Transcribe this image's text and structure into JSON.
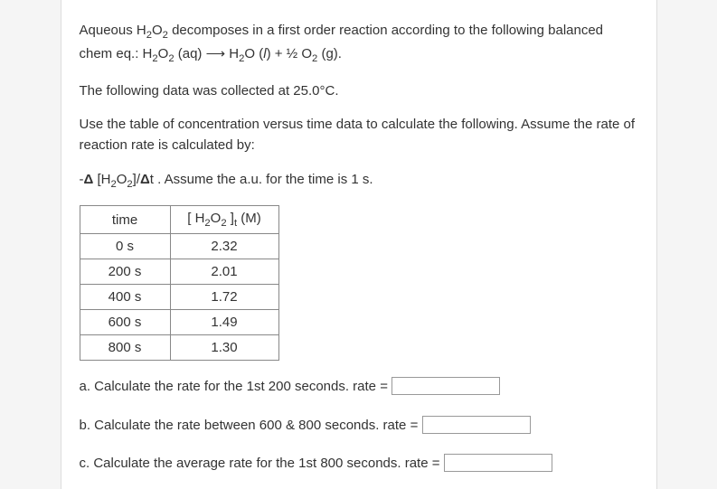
{
  "intro": {
    "p1_a": "Aqueous H",
    "p1_b": "O",
    "p1_c": " decomposes in a first order reaction according to the following balanced chem eq.: H",
    "p1_d": "O",
    "p1_e": " (aq) ",
    "p1_f": " H",
    "p1_g": "O (",
    "p1_h": "l",
    "p1_i": ")  + ",
    "p1_j": " O",
    "p1_k": " (g).",
    "p2_a": "The following data was collected at 25.0",
    "p2_b": "C.",
    "p3": "Use the table of concentration versus time data to calculate the following. Assume the rate of reaction rate is calculated by:",
    "p4_a": "-",
    "p4_b": " [H",
    "p4_c": "O",
    "p4_d": "]/",
    "p4_e": "t .  Assume the a.u. for the time is 1 s."
  },
  "table": {
    "h1": "time",
    "h2_a": "[ H",
    "h2_b": "O",
    "h2_c": " ]",
    "h2_d": " (M)",
    "rows": [
      {
        "time": "0 s",
        "conc": "2.32"
      },
      {
        "time": "200 s",
        "conc": "2.01"
      },
      {
        "time": "400 s",
        "conc": "1.72"
      },
      {
        "time": "600 s",
        "conc": "1.49"
      },
      {
        "time": "800 s",
        "conc": "1.30"
      }
    ]
  },
  "questions": {
    "a": "a.  Calculate the rate for the 1st 200 seconds. rate  = ",
    "b": "b.  Calculate the rate between 600 & 800 seconds. rate = ",
    "c": "c.  Calculate the average rate for the 1st 800 seconds. rate  = "
  },
  "sub2": "2",
  "subt": "t"
}
